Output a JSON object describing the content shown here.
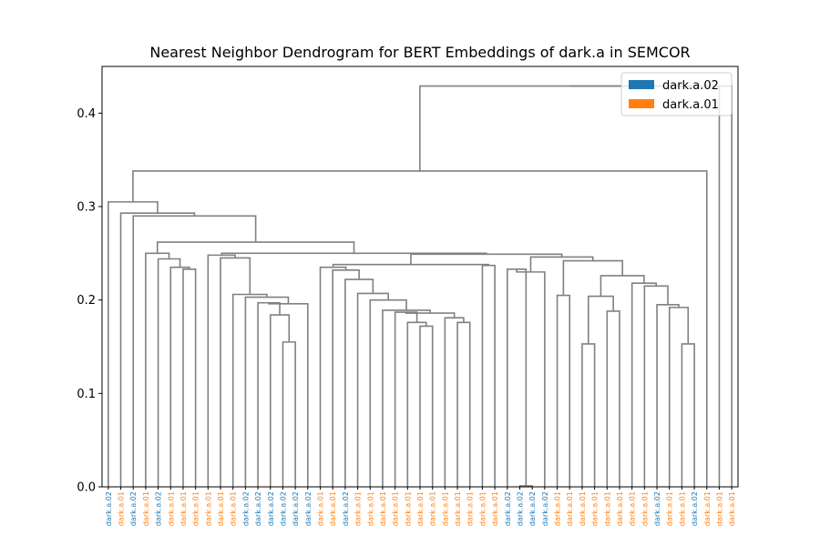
{
  "chart_data": {
    "type": "dendrogram",
    "title": "Nearest Neighbor Dendrogram for BERT Embeddings of dark.a in SEMCOR",
    "xlabel": "",
    "ylabel": "",
    "ylim": [
      0,
      0.45
    ],
    "y_ticks": [
      0.0,
      0.1,
      0.2,
      0.3,
      0.4
    ],
    "y_tick_labels": [
      "0.0",
      "0.1",
      "0.2",
      "0.3",
      "0.4"
    ],
    "grid": false,
    "legend_position": "top-right",
    "link_color": "#808080",
    "legend": [
      {
        "label": "dark.a.02",
        "color": "#1f77b4"
      },
      {
        "label": "dark.a.01",
        "color": "#ff7f0e"
      }
    ],
    "leaves": [
      "dark.a.02",
      "dark.a.01",
      "dark.a.02",
      "dark.a.01",
      "dark.a.02",
      "dark.a.01",
      "dark.a.01",
      "dark.a.01",
      "dark.a.01",
      "dark.a.01",
      "dark.a.01",
      "dark.a.02",
      "dark.a.02",
      "dark.a.02",
      "dark.a.02",
      "dark.a.02",
      "dark.a.02",
      "dark.a.01",
      "dark.a.01",
      "dark.a.02",
      "dark.a.01",
      "dark.a.01",
      "dark.a.01",
      "dark.a.01",
      "dark.a.01",
      "dark.a.01",
      "dark.a.01",
      "dark.a.01",
      "dark.a.01",
      "dark.a.01",
      "dark.a.01",
      "dark.a.01",
      "dark.a.02",
      "dark.a.02",
      "dark.a.02",
      "dark.a.02",
      "dark.a.01",
      "dark.a.01",
      "dark.a.01",
      "dark.a.01",
      "dark.a.01",
      "dark.a.01",
      "dark.a.01",
      "dark.a.01",
      "dark.a.02",
      "dark.a.01",
      "dark.a.01",
      "dark.a.02",
      "dark.a.01",
      "dark.a.01",
      "dark.a.01"
    ],
    "leaf_colors": [
      "#1f77b4",
      "#ff7f0e",
      "#1f77b4",
      "#ff7f0e",
      "#1f77b4",
      "#ff7f0e",
      "#ff7f0e",
      "#ff7f0e",
      "#ff7f0e",
      "#ff7f0e",
      "#ff7f0e",
      "#1f77b4",
      "#1f77b4",
      "#1f77b4",
      "#1f77b4",
      "#1f77b4",
      "#1f77b4",
      "#ff7f0e",
      "#ff7f0e",
      "#1f77b4",
      "#ff7f0e",
      "#ff7f0e",
      "#ff7f0e",
      "#ff7f0e",
      "#ff7f0e",
      "#ff7f0e",
      "#ff7f0e",
      "#ff7f0e",
      "#ff7f0e",
      "#ff7f0e",
      "#ff7f0e",
      "#ff7f0e",
      "#1f77b4",
      "#1f77b4",
      "#1f77b4",
      "#1f77b4",
      "#ff7f0e",
      "#ff7f0e",
      "#ff7f0e",
      "#ff7f0e",
      "#ff7f0e",
      "#ff7f0e",
      "#ff7f0e",
      "#ff7f0e",
      "#1f77b4",
      "#ff7f0e",
      "#ff7f0e",
      "#1f77b4",
      "#ff7f0e",
      "#ff7f0e",
      "#ff7f0e"
    ],
    "merges": [
      [
        "L33",
        "L34",
        0.001
      ],
      [
        "L14",
        "L15",
        0.155
      ],
      [
        "L13",
        "N1",
        0.184
      ],
      [
        "L12",
        "N2",
        0.197
      ],
      [
        "L16",
        "N3",
        0.196
      ],
      [
        "L11",
        "N4",
        0.203
      ],
      [
        "L10",
        "N5",
        0.206
      ],
      [
        "L9",
        "N6",
        0.245
      ],
      [
        "L8",
        "N7",
        0.248
      ],
      [
        "L6",
        "L7",
        0.233
      ],
      [
        "L5",
        "N9",
        0.235
      ],
      [
        "L4",
        "N10",
        0.244
      ],
      [
        "L3",
        "N11",
        0.25
      ],
      [
        "L25",
        "L26",
        0.172
      ],
      [
        "L24",
        "N13",
        0.176
      ],
      [
        "L23",
        "N14",
        0.187
      ],
      [
        "L28",
        "L29",
        0.176
      ],
      [
        "L27",
        "N16",
        0.181
      ],
      [
        "N15",
        "N17",
        0.186
      ],
      [
        "L22",
        "N18",
        0.189
      ],
      [
        "L21",
        "N19",
        0.2
      ],
      [
        "L20",
        "N20",
        0.207
      ],
      [
        "L19",
        "N21",
        0.222
      ],
      [
        "L18",
        "N22",
        0.232
      ],
      [
        "L17",
        "N23",
        0.235
      ],
      [
        "L30",
        "L31",
        0.237
      ],
      [
        "N24",
        "N25",
        0.238
      ],
      [
        "L32",
        "N0",
        0.233
      ],
      [
        "L35",
        "N27",
        0.23
      ],
      [
        "L36",
        "L37",
        0.205
      ],
      [
        "L38",
        "L39",
        0.153
      ],
      [
        "L40",
        "L41",
        0.188
      ],
      [
        "N30",
        "N31",
        0.204
      ],
      [
        "L46",
        "L47",
        0.153
      ],
      [
        "L45",
        "N33",
        0.192
      ],
      [
        "L44",
        "N34",
        0.195
      ],
      [
        "L43",
        "N35",
        0.215
      ],
      [
        "L42",
        "N36",
        0.218
      ],
      [
        "N32",
        "N37",
        0.226
      ],
      [
        "N29",
        "N38",
        0.242
      ],
      [
        "N28",
        "N39",
        0.246
      ],
      [
        "N26",
        "N40",
        0.249
      ],
      [
        "N8",
        "N41",
        0.25
      ],
      [
        "N12",
        "N42",
        0.262
      ],
      [
        "L2",
        "N43",
        0.29
      ],
      [
        "L1",
        "N44",
        0.293
      ],
      [
        "L0",
        "N45",
        0.305
      ],
      [
        "N46",
        "L48",
        0.338
      ],
      [
        "N47",
        "L49",
        0.429
      ],
      [
        "N48",
        "L50",
        0.429
      ]
    ]
  }
}
